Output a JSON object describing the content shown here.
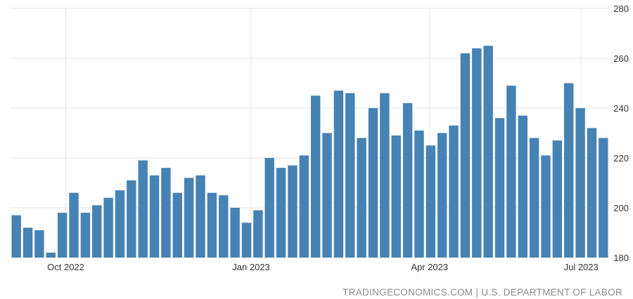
{
  "chart_data": {
    "type": "bar",
    "x_ticks": [
      "Oct 2022",
      "Jan 2023",
      "Apr 2023",
      "Jul 2023"
    ],
    "y_ticks": [
      180,
      200,
      220,
      240,
      260,
      280
    ],
    "ylim": [
      180,
      280
    ],
    "grid": true,
    "values": [
      197,
      192,
      191,
      182,
      198,
      206,
      198,
      201,
      204,
      207,
      211,
      219,
      213,
      216,
      206,
      212,
      213,
      206,
      205,
      200,
      194,
      199,
      220,
      216,
      217,
      221,
      245,
      230,
      247,
      246,
      228,
      240,
      246,
      229,
      242,
      231,
      225,
      230,
      233,
      262,
      264,
      265,
      236,
      249,
      237,
      228,
      221,
      227,
      250,
      240,
      232,
      228
    ],
    "bar_color": "#4682b4"
  },
  "source_text": "TRADINGECONOMICS.COM | U.S. DEPARTMENT OF LABOR"
}
